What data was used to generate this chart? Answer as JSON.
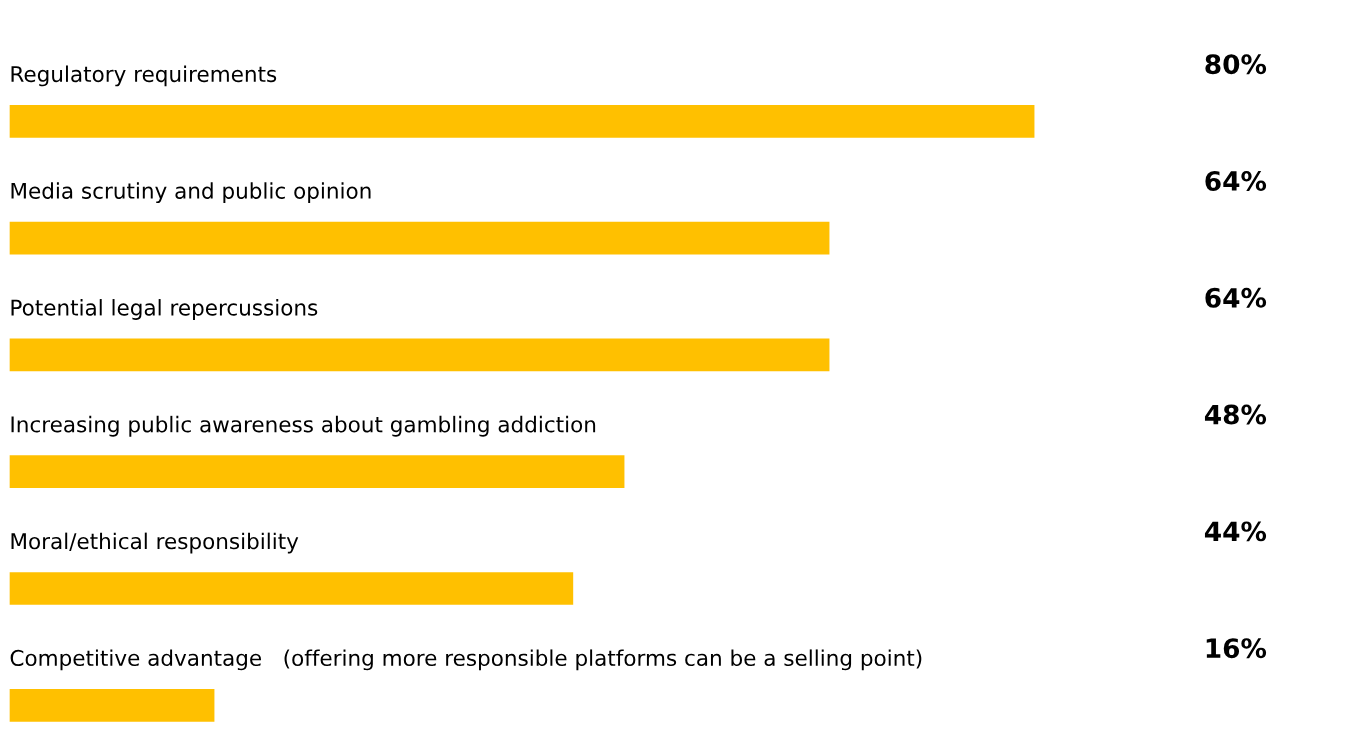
{
  "chart_data": {
    "type": "bar",
    "orientation": "horizontal",
    "categories": [
      "Regulatory requirements",
      "Media scrutiny and public opinion",
      "Potential legal repercussions",
      "Increasing public awareness about gambling addiction",
      "Moral/ethical responsibility",
      "Competitive advantage   (offering more responsible platforms can be a selling point)"
    ],
    "values": [
      80,
      64,
      64,
      48,
      44,
      16
    ],
    "value_labels": [
      "80%",
      "64%",
      "64%",
      "48%",
      "44%",
      "16%"
    ],
    "color": "#ffc000",
    "tick_labels": false
  }
}
